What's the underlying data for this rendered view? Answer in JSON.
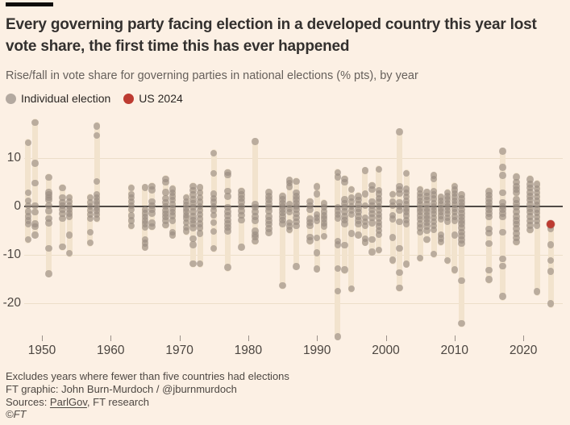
{
  "header": {
    "title_line1": "Every governing party facing election in a developed country this year lost",
    "title_line2": "vote share, the first time this has ever happened",
    "subtitle": "Rise/fall in vote share for governing parties in national elections (% pts), by year"
  },
  "legend": {
    "individual_label": "Individual election",
    "us2024_label": "US 2024"
  },
  "colors": {
    "background": "#fcf0e4",
    "band": "#f2e3cd",
    "dot_gray": "#978b80",
    "dot_gray_opacity": 0.62,
    "legend_gray": "#b3a9a0",
    "highlight_red": "#bd3b31",
    "zero_line": "#514b46",
    "gridline": "#ecdec9"
  },
  "chart_data": {
    "type": "scatter",
    "title": "Every governing party facing election in a developed country this year lost vote share, the first time this has ever happened",
    "subtitle": "Rise/fall in vote share for governing parties in national elections (% pts), by year",
    "xlabel": "",
    "ylabel": "Rise/fall in vote share (% pts)",
    "y_ticks": [
      10,
      0,
      -10,
      -20
    ],
    "x_ticks": [
      1950,
      1960,
      1970,
      1980,
      1990,
      2000,
      2010,
      2020
    ],
    "ylim": [
      -27.5,
      18.5
    ],
    "xlim": [
      1946,
      2026
    ],
    "grid": true,
    "legend_position": "top-left",
    "highlight": {
      "year": 2024,
      "value": -3.7,
      "label": "US 2024"
    },
    "columns": [
      {
        "year": 1948,
        "values": [
          13.2,
          2.8,
          1.2,
          0.2,
          -1.1,
          -2.1,
          -2.9,
          -3.7,
          -6.8
        ]
      },
      {
        "year": 1949,
        "values": [
          17.3,
          8.9,
          4.8,
          0.2,
          -1.2,
          -3.6,
          -4.2,
          -5.9
        ]
      },
      {
        "year": 1951,
        "values": [
          6.0,
          2.9,
          2.4,
          1.8,
          1.3,
          0.2,
          -0.9,
          -2.5,
          -3.4,
          -8.7,
          -13.9
        ]
      },
      {
        "year": 1953,
        "values": [
          3.8,
          1.8,
          0.8,
          0.2,
          -0.7,
          -1.5,
          -2.5,
          -8.3
        ]
      },
      {
        "year": 1954,
        "values": [
          1.8,
          1.0,
          0.1,
          -0.7,
          -1.4,
          -2.1,
          -5.9,
          -9.7
        ]
      },
      {
        "year": 1957,
        "values": [
          1.8,
          0.8,
          0.0,
          -0.8,
          -1.7,
          -2.5,
          -5.3,
          -7.5
        ]
      },
      {
        "year": 1958,
        "values": [
          16.6,
          14.7,
          5.2,
          2.5,
          1.8,
          1.1,
          0.4,
          -0.3,
          -0.9,
          -1.7,
          -2.5
        ]
      },
      {
        "year": 1963,
        "values": [
          3.8,
          2.5,
          1.8,
          1.0,
          0.2,
          -0.7,
          -1.9,
          -2.9,
          -4.0
        ]
      },
      {
        "year": 1965,
        "values": [
          3.9,
          -0.7,
          -1.4,
          -2.2,
          -2.9,
          -3.6,
          -4.3,
          -6.8,
          -7.6,
          -8.4
        ]
      },
      {
        "year": 1966,
        "values": [
          4.2,
          3.4,
          1.0,
          0.2,
          -0.7,
          -1.4,
          -3.4,
          -4.2
        ]
      },
      {
        "year": 1968,
        "values": [
          5.7,
          5.0,
          2.9,
          1.7,
          0.8,
          0.0,
          -0.8,
          -1.5,
          -2.2,
          -2.9,
          -3.8
        ]
      },
      {
        "year": 1969,
        "values": [
          3.6,
          2.8,
          2.1,
          1.3,
          0.4,
          -0.4,
          -1.2,
          -1.9,
          -2.9,
          -5.3,
          -5.9
        ]
      },
      {
        "year": 1971,
        "values": [
          1.8,
          1.0,
          0.3,
          -0.4,
          -1.1,
          -1.8,
          -2.4,
          -3.3,
          -4.3,
          -5.1
        ]
      },
      {
        "year": 1972,
        "values": [
          4.2,
          3.3,
          2.4,
          1.4,
          0.6,
          -0.2,
          -1.1,
          -2.1,
          -2.8,
          -3.6,
          -4.4,
          -6.7,
          -7.9,
          -11.8
        ]
      },
      {
        "year": 1973,
        "values": [
          3.9,
          2.8,
          1.8,
          0.9,
          0.0,
          -0.8,
          -1.7,
          -2.6,
          -3.6,
          -4.4,
          -5.6,
          -11.8
        ]
      },
      {
        "year": 1975,
        "values": [
          11.0,
          6.8,
          2.6,
          1.7,
          0.9,
          0.0,
          -0.8,
          -1.8,
          -3.3,
          -5.2,
          -8.7
        ]
      },
      {
        "year": 1977,
        "values": [
          7.0,
          6.5,
          3.2,
          2.1,
          -0.2,
          -1.1,
          -1.9,
          -2.8,
          -3.6,
          -4.3,
          -5.1,
          -12.6
        ]
      },
      {
        "year": 1979,
        "values": [
          3.2,
          2.4,
          1.7,
          0.9,
          0.0,
          -0.9,
          -1.8,
          -2.8,
          -8.4
        ]
      },
      {
        "year": 1981,
        "values": [
          13.4,
          0.4,
          -0.2,
          -1.1,
          -2.1,
          -2.9,
          -5.1,
          -5.8,
          -6.3,
          -7.2
        ]
      },
      {
        "year": 1983,
        "values": [
          2.9,
          2.1,
          1.4,
          0.6,
          -0.2,
          -0.9,
          -2.1,
          -2.9,
          -3.7,
          -4.6,
          -5.4
        ]
      },
      {
        "year": 1985,
        "values": [
          2.1,
          1.4,
          0.7,
          0.0,
          -0.7,
          -1.3,
          -2.1,
          -2.8,
          -3.6,
          -16.3
        ]
      },
      {
        "year": 1986,
        "values": [
          5.4,
          4.8,
          4.1,
          0.4,
          -0.4,
          -1.2,
          -3.3,
          -4.1,
          -4.8
        ]
      },
      {
        "year": 1987,
        "values": [
          5.2,
          2.8,
          2.1,
          1.4,
          0.7,
          0.0,
          -0.7,
          -1.5,
          -2.3,
          -3.2,
          -4.0,
          -12.4
        ]
      },
      {
        "year": 1989,
        "values": [
          1.0,
          0.2,
          -0.7,
          -2.6,
          -3.3,
          -4.0,
          -6.3,
          -7.1
        ]
      },
      {
        "year": 1990,
        "values": [
          4.1,
          2.6,
          -1.7,
          -2.3,
          -3.0,
          -6.5,
          -9.6,
          -12.9
        ]
      },
      {
        "year": 1991,
        "values": [
          0.6,
          -0.2,
          -1.1,
          -1.9,
          -2.6,
          -3.4,
          -4.1,
          -6.2
        ]
      },
      {
        "year": 1993,
        "values": [
          7.0,
          6.1,
          -0.2,
          -0.9,
          -1.7,
          -2.4,
          -7.2,
          -7.9,
          -12.8,
          -17.5,
          -26.9
        ]
      },
      {
        "year": 1994,
        "values": [
          5.7,
          5.0,
          1.4,
          0.6,
          -0.2,
          -1.1,
          -2.1,
          -2.8,
          -3.6,
          -8.0,
          -13.1
        ]
      },
      {
        "year": 1995,
        "values": [
          3.5,
          1.8,
          1.0,
          0.0,
          -0.8,
          -1.7,
          -5.6,
          -17.0
        ]
      },
      {
        "year": 1996,
        "values": [
          2.1,
          1.3,
          0.4,
          -0.4,
          -1.2,
          -2.1,
          -2.9,
          -3.7,
          -5.9
        ]
      },
      {
        "year": 1997,
        "values": [
          7.4,
          2.6,
          0.2,
          -2.3,
          -3.2,
          -4.0,
          -6.7,
          -7.4
        ]
      },
      {
        "year": 1998,
        "values": [
          4.3,
          3.5,
          1.0,
          0.2,
          -0.7,
          -1.5,
          -2.3,
          -3.4,
          -6.8,
          -9.4
        ]
      },
      {
        "year": 1999,
        "values": [
          7.7,
          3.3,
          2.6,
          1.7,
          0.9,
          0.0,
          -0.8,
          -1.7,
          -2.4,
          -3.3,
          -4.1,
          -5.0,
          -5.8,
          -9.0
        ]
      },
      {
        "year": 2001,
        "values": [
          2.5,
          1.0,
          0.2,
          -1.8,
          -2.6,
          -6.4,
          -11.1
        ]
      },
      {
        "year": 2002,
        "values": [
          15.4,
          4.2,
          3.5,
          2.7,
          0.8,
          0.0,
          -0.8,
          -3.2,
          -8.7,
          -13.7,
          -16.8
        ]
      },
      {
        "year": 2003,
        "values": [
          6.8,
          3.6,
          2.8,
          2.0,
          1.2,
          0.4,
          -0.4,
          -1.1,
          -1.9,
          -2.8,
          -3.6,
          -11.9
        ]
      },
      {
        "year": 2005,
        "values": [
          3.5,
          2.7,
          1.9,
          1.2,
          0.4,
          -0.4,
          -1.1,
          -1.9,
          -2.7,
          -3.6,
          -4.4,
          -5.3,
          -10.7
        ]
      },
      {
        "year": 2006,
        "values": [
          2.9,
          2.1,
          1.3,
          0.4,
          -0.4,
          -1.1,
          -1.9,
          -2.6,
          -3.3,
          -4.1,
          -5.0,
          -6.8
        ]
      },
      {
        "year": 2007,
        "values": [
          6.4,
          5.7,
          3.2,
          2.4,
          1.6,
          0.7,
          -0.1,
          -0.8,
          -1.5,
          -2.3,
          -3.2,
          -4.0,
          -4.8,
          -9.8
        ]
      },
      {
        "year": 2008,
        "values": [
          1.9,
          1.2,
          0.4,
          -0.4,
          -1.1,
          -1.9,
          -2.7,
          -5.8,
          -6.6,
          -7.3
        ]
      },
      {
        "year": 2009,
        "values": [
          2.8,
          2.1,
          1.4,
          0.6,
          -0.1,
          -0.8,
          -1.5,
          -2.3,
          -3.1,
          -11.2
        ]
      },
      {
        "year": 2010,
        "values": [
          4.2,
          3.4,
          2.7,
          1.9,
          1.2,
          0.4,
          -0.4,
          -1.2,
          -2.1,
          -2.9,
          -5.9,
          -13.1
        ]
      },
      {
        "year": 2011,
        "values": [
          2.4,
          1.6,
          0.8,
          0.2,
          -0.7,
          -1.4,
          -2.2,
          -2.9,
          -3.6,
          -4.4,
          -5.3,
          -6.1,
          -6.9,
          -7.7,
          -15.3,
          -24.2
        ]
      },
      {
        "year": 2015,
        "values": [
          3.1,
          2.3,
          1.6,
          0.8,
          0.1,
          -0.7,
          -1.4,
          -2.2,
          -4.7,
          -5.5,
          -7.7,
          -13.2,
          -15.1
        ]
      },
      {
        "year": 2017,
        "values": [
          11.4,
          8.1,
          6.4,
          2.8,
          0.8,
          0.0,
          -0.7,
          -1.4,
          -2.2,
          -5.3,
          -10.8,
          -12.3,
          -18.6
        ]
      },
      {
        "year": 2019,
        "values": [
          6.1,
          5.0,
          4.2,
          3.5,
          2.8,
          1.4,
          0.6,
          -0.2,
          -1.1,
          -2.1,
          -2.9,
          -3.7,
          -4.6,
          -5.6,
          -6.5,
          -7.3
        ]
      },
      {
        "year": 2021,
        "values": [
          5.6,
          4.6,
          3.8,
          2.9,
          2.1,
          1.3,
          0.4,
          -0.4,
          -1.2,
          -2.1,
          -3.0,
          -3.9,
          -4.8
        ]
      },
      {
        "year": 2022,
        "values": [
          4.6,
          3.7,
          2.8,
          2.0,
          1.1,
          0.3,
          -0.6,
          -1.3,
          -2.2,
          -3.0,
          -3.9,
          -17.6
        ]
      },
      {
        "year": 2024,
        "values": [
          -4.6,
          -7.9,
          -11.2,
          -13.4,
          -20.1
        ],
        "highlight_value": -3.7
      }
    ]
  },
  "footer": {
    "note": "Excludes years where fewer than five countries had elections",
    "credit": "FT graphic: John Burn-Murdoch / @jburnmurdoch",
    "sources_prefix": "Sources: ",
    "sources_link": "ParlGov",
    "sources_suffix": ", FT research",
    "copyright": "©FT"
  }
}
